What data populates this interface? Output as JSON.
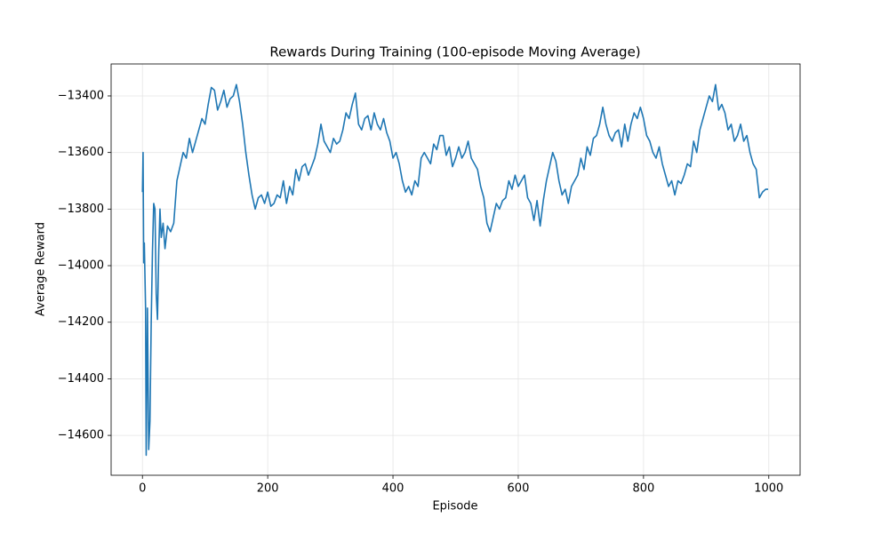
{
  "chart_data": {
    "type": "line",
    "title": "Rewards During Training (100-episode Moving Average)",
    "x_label": "Episode",
    "y_label": "Average Reward",
    "color": "#1f77b4",
    "grid": true,
    "xlim": [
      -50,
      1050
    ],
    "ylim": [
      -14741,
      -13287
    ],
    "xticks": [
      0,
      200,
      400,
      600,
      800,
      1000
    ],
    "yticks": [
      {
        "value": -14600,
        "label": "−14600"
      },
      {
        "value": -14400,
        "label": "−14400"
      },
      {
        "value": -14200,
        "label": "−14200"
      },
      {
        "value": -14000,
        "label": "−14000"
      },
      {
        "value": -13800,
        "label": "−13800"
      },
      {
        "value": -13600,
        "label": "−13600"
      },
      {
        "value": -13400,
        "label": "−13400"
      }
    ],
    "x": [
      0,
      1,
      2,
      3,
      5,
      6,
      8,
      10,
      12,
      14,
      16,
      18,
      20,
      22,
      24,
      26,
      28,
      30,
      33,
      36,
      40,
      45,
      50,
      55,
      60,
      65,
      70,
      75,
      80,
      85,
      90,
      95,
      100,
      105,
      110,
      115,
      120,
      125,
      130,
      135,
      140,
      145,
      150,
      155,
      160,
      165,
      170,
      175,
      180,
      185,
      190,
      195,
      200,
      205,
      210,
      215,
      220,
      225,
      230,
      235,
      240,
      245,
      250,
      255,
      260,
      265,
      270,
      275,
      280,
      285,
      290,
      295,
      300,
      305,
      310,
      315,
      320,
      325,
      330,
      335,
      340,
      345,
      350,
      355,
      360,
      365,
      370,
      375,
      380,
      385,
      390,
      395,
      400,
      405,
      410,
      415,
      420,
      425,
      430,
      435,
      440,
      445,
      450,
      455,
      460,
      465,
      470,
      475,
      480,
      485,
      490,
      495,
      500,
      505,
      510,
      515,
      520,
      525,
      530,
      535,
      540,
      545,
      550,
      555,
      560,
      565,
      570,
      575,
      580,
      585,
      590,
      595,
      600,
      605,
      610,
      615,
      620,
      625,
      630,
      635,
      640,
      645,
      650,
      655,
      660,
      665,
      670,
      675,
      680,
      685,
      690,
      695,
      700,
      705,
      710,
      715,
      720,
      725,
      730,
      735,
      740,
      745,
      750,
      755,
      760,
      765,
      770,
      775,
      780,
      785,
      790,
      795,
      800,
      805,
      810,
      815,
      820,
      825,
      830,
      835,
      840,
      845,
      850,
      855,
      860,
      865,
      870,
      875,
      880,
      885,
      890,
      895,
      900,
      905,
      910,
      915,
      920,
      925,
      930,
      935,
      940,
      945,
      950,
      955,
      960,
      965,
      970,
      975,
      980,
      985,
      990,
      995,
      999
    ],
    "values": [
      -13740,
      -13600,
      -13990,
      -13920,
      -14150,
      -14670,
      -14150,
      -14650,
      -14550,
      -14200,
      -13950,
      -13780,
      -13800,
      -14100,
      -14190,
      -13950,
      -13800,
      -13900,
      -13850,
      -13940,
      -13860,
      -13880,
      -13850,
      -13700,
      -13650,
      -13600,
      -13620,
      -13550,
      -13600,
      -13560,
      -13520,
      -13480,
      -13500,
      -13430,
      -13370,
      -13380,
      -13450,
      -13420,
      -13380,
      -13440,
      -13410,
      -13400,
      -13360,
      -13420,
      -13500,
      -13600,
      -13680,
      -13750,
      -13800,
      -13760,
      -13750,
      -13780,
      -13740,
      -13790,
      -13780,
      -13750,
      -13760,
      -13700,
      -13780,
      -13720,
      -13750,
      -13660,
      -13700,
      -13650,
      -13640,
      -13680,
      -13650,
      -13620,
      -13570,
      -13500,
      -13560,
      -13580,
      -13600,
      -13550,
      -13570,
      -13560,
      -13520,
      -13460,
      -13480,
      -13430,
      -13390,
      -13500,
      -13520,
      -13480,
      -13470,
      -13520,
      -13460,
      -13500,
      -13520,
      -13480,
      -13530,
      -13560,
      -13620,
      -13600,
      -13640,
      -13700,
      -13740,
      -13720,
      -13750,
      -13700,
      -13720,
      -13620,
      -13600,
      -13620,
      -13640,
      -13570,
      -13590,
      -13540,
      -13540,
      -13610,
      -13580,
      -13650,
      -13620,
      -13580,
      -13620,
      -13600,
      -13560,
      -13620,
      -13640,
      -13660,
      -13720,
      -13760,
      -13850,
      -13880,
      -13830,
      -13780,
      -13800,
      -13770,
      -13760,
      -13700,
      -13730,
      -13680,
      -13720,
      -13700,
      -13680,
      -13760,
      -13780,
      -13840,
      -13770,
      -13860,
      -13770,
      -13700,
      -13650,
      -13600,
      -13630,
      -13700,
      -13750,
      -13730,
      -13780,
      -13720,
      -13700,
      -13680,
      -13620,
      -13660,
      -13580,
      -13610,
      -13550,
      -13540,
      -13500,
      -13440,
      -13500,
      -13540,
      -13560,
      -13530,
      -13520,
      -13580,
      -13500,
      -13560,
      -13500,
      -13460,
      -13480,
      -13440,
      -13480,
      -13540,
      -13560,
      -13600,
      -13620,
      -13580,
      -13640,
      -13680,
      -13720,
      -13700,
      -13750,
      -13700,
      -13710,
      -13680,
      -13640,
      -13650,
      -13560,
      -13600,
      -13520,
      -13480,
      -13440,
      -13400,
      -13420,
      -13360,
      -13450,
      -13430,
      -13460,
      -13520,
      -13500,
      -13560,
      -13540,
      -13500,
      -13560,
      -13540,
      -13600,
      -13640,
      -13660,
      -13760,
      -13740,
      -13730,
      -13730
    ]
  }
}
